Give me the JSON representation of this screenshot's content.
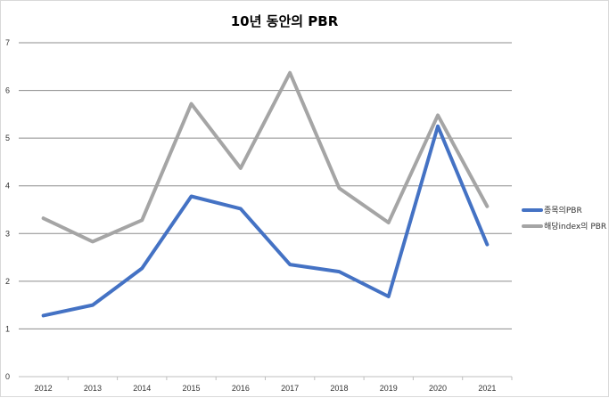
{
  "chart_data": {
    "type": "line",
    "title": "10년 동안의 PBR",
    "xlabel": "",
    "ylabel": "",
    "categories": [
      "2012",
      "2013",
      "2014",
      "2015",
      "2016",
      "2017",
      "2018",
      "2019",
      "2020",
      "2021"
    ],
    "ylim": [
      0,
      7
    ],
    "yticks": [
      "0",
      "1",
      "2",
      "3",
      "4",
      "5",
      "6",
      "7"
    ],
    "grid": true,
    "legend_position": "right",
    "series": [
      {
        "name": "종목의PBR",
        "color": "#4472c4",
        "values": [
          1.28,
          1.5,
          2.27,
          3.78,
          3.52,
          2.35,
          2.2,
          1.68,
          5.25,
          2.77
        ]
      },
      {
        "name": "해당index의 PBR",
        "color": "#a5a5a5",
        "values": [
          3.32,
          2.83,
          3.28,
          5.72,
          4.37,
          6.37,
          3.95,
          3.23,
          5.48,
          3.57
        ]
      }
    ]
  }
}
